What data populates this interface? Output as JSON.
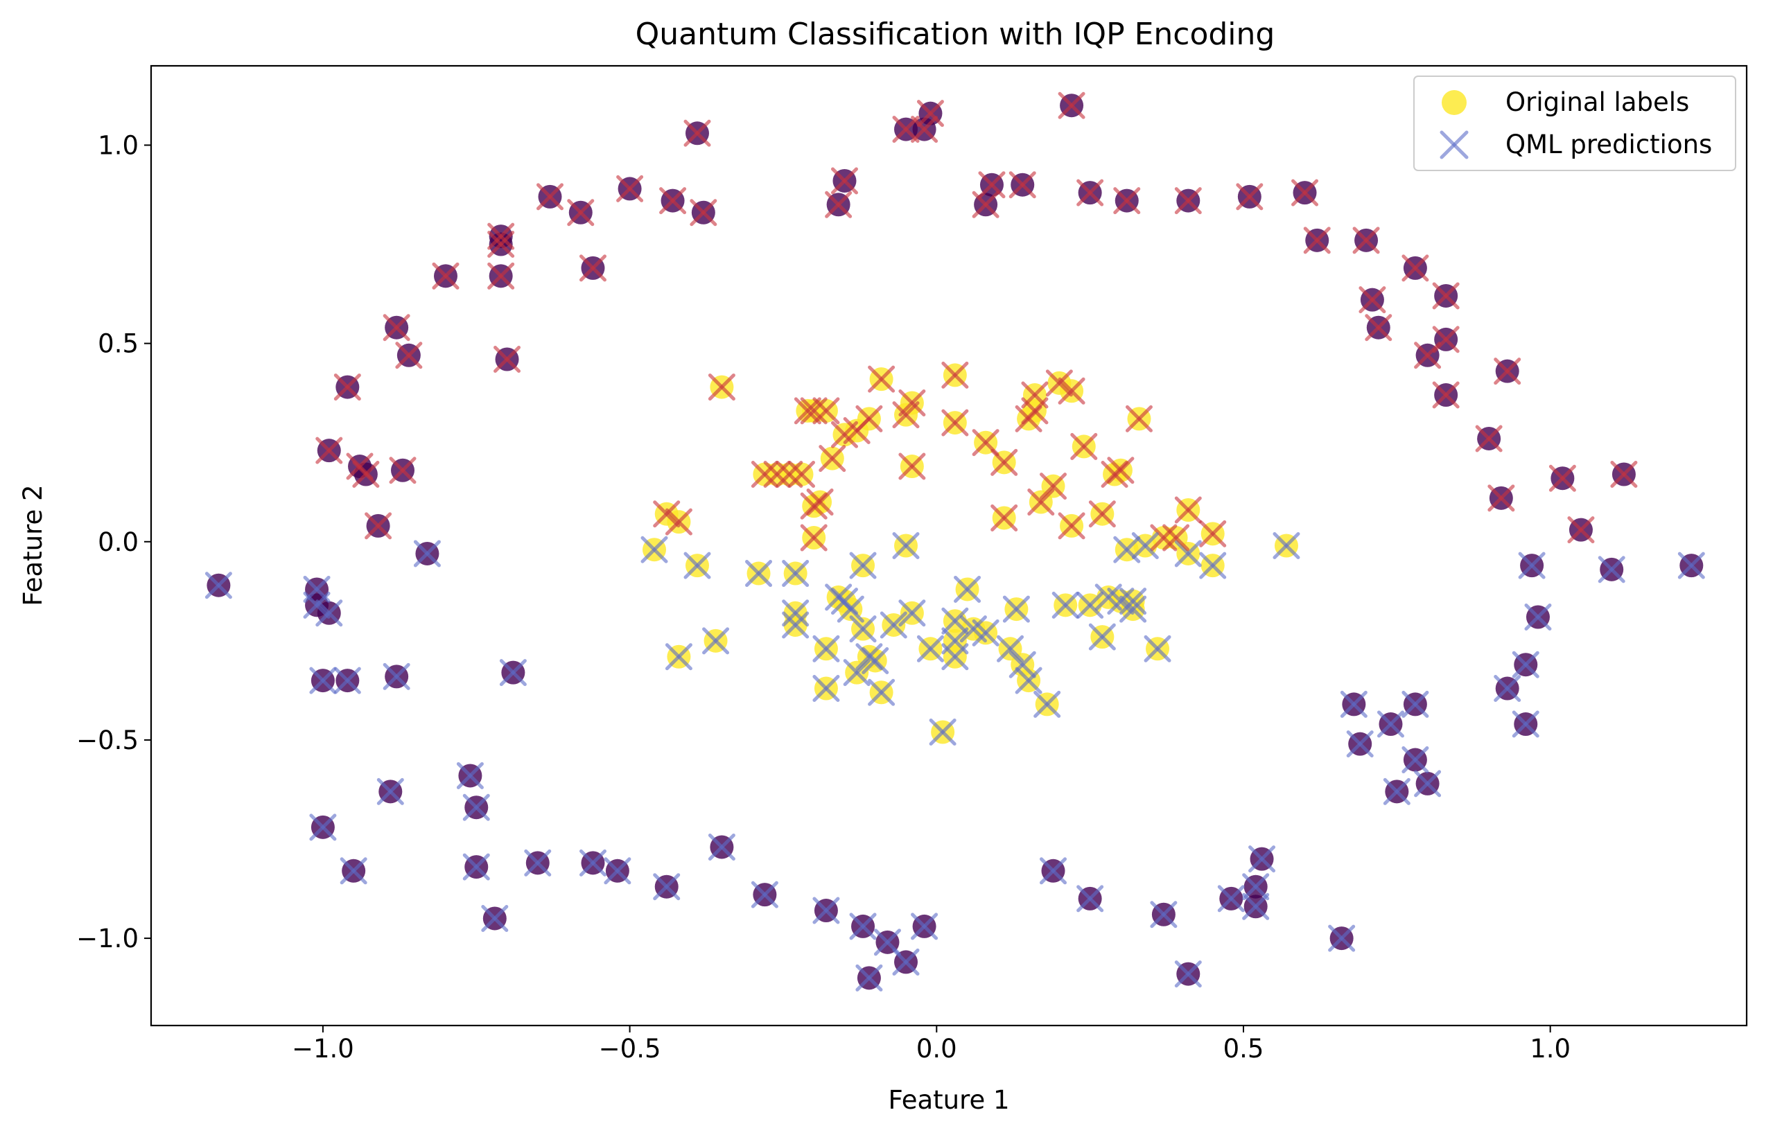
{
  "chart_data": {
    "type": "scatter",
    "title": "Quantum Classification with IQP Encoding",
    "xlabel": "Feature 1",
    "ylabel": "Feature 2",
    "xlim": [
      -1.28,
      1.32
    ],
    "ylim": [
      -1.22,
      1.2
    ],
    "xticks": [
      -1.0,
      -0.5,
      0.0,
      0.5,
      1.0
    ],
    "xtick_labels": [
      "−1.0",
      "−0.5",
      "0.0",
      "0.5",
      "1.0"
    ],
    "yticks": [
      -1.0,
      -0.5,
      0.0,
      0.5,
      1.0
    ],
    "ytick_labels": [
      "−1.0",
      "−0.5",
      "0.0",
      "0.5",
      "1.0"
    ],
    "grid": false,
    "legend_position": "top-right",
    "legend": [
      {
        "label": "Original labels",
        "marker": "circle",
        "color": "#fde725"
      },
      {
        "label": "QML predictions",
        "marker": "x",
        "color": "#8c96d6"
      }
    ],
    "colors": {
      "class0": "#440154",
      "class1": "#fde725",
      "pred0": "#5c6cc8",
      "pred1": "#c8323c",
      "axis": "#000000"
    },
    "series": [
      {
        "name": "Original labels",
        "marker": "circle",
        "points": [
          [
            -0.39,
            1.03,
            0
          ],
          [
            -0.05,
            1.04,
            0
          ],
          [
            -0.02,
            1.04,
            0
          ],
          [
            -0.01,
            1.08,
            0
          ],
          [
            0.22,
            1.1,
            0
          ],
          [
            -0.63,
            0.87,
            0
          ],
          [
            -0.58,
            0.83,
            0
          ],
          [
            -0.5,
            0.89,
            0
          ],
          [
            -0.43,
            0.86,
            0
          ],
          [
            -0.38,
            0.83,
            0
          ],
          [
            -0.15,
            0.91,
            0
          ],
          [
            -0.16,
            0.85,
            0
          ],
          [
            0.08,
            0.85,
            0
          ],
          [
            0.09,
            0.9,
            0
          ],
          [
            0.14,
            0.9,
            0
          ],
          [
            0.25,
            0.88,
            0
          ],
          [
            0.31,
            0.86,
            0
          ],
          [
            0.41,
            0.86,
            0
          ],
          [
            0.51,
            0.87,
            0
          ],
          [
            0.6,
            0.88,
            0
          ],
          [
            -0.71,
            0.77,
            0
          ],
          [
            -0.71,
            0.75,
            0
          ],
          [
            -0.71,
            0.67,
            0
          ],
          [
            -0.8,
            0.67,
            0
          ],
          [
            -0.56,
            0.69,
            0
          ],
          [
            -0.88,
            0.54,
            0
          ],
          [
            -0.86,
            0.47,
            0
          ],
          [
            -0.7,
            0.46,
            0
          ],
          [
            -0.96,
            0.39,
            0
          ],
          [
            -0.99,
            0.23,
            0
          ],
          [
            -0.94,
            0.19,
            0
          ],
          [
            -0.93,
            0.17,
            0
          ],
          [
            -0.87,
            0.18,
            0
          ],
          [
            -0.91,
            0.04,
            0
          ],
          [
            0.62,
            0.76,
            0
          ],
          [
            0.7,
            0.76,
            0
          ],
          [
            0.71,
            0.61,
            0
          ],
          [
            0.72,
            0.54,
            0
          ],
          [
            0.78,
            0.69,
            0
          ],
          [
            0.8,
            0.47,
            0
          ],
          [
            0.83,
            0.62,
            0
          ],
          [
            0.83,
            0.51,
            0
          ],
          [
            0.83,
            0.37,
            0
          ],
          [
            0.9,
            0.26,
            0
          ],
          [
            0.92,
            0.11,
            0
          ],
          [
            0.93,
            0.43,
            0
          ],
          [
            1.02,
            0.16,
            0
          ],
          [
            1.05,
            0.03,
            0
          ],
          [
            1.12,
            0.17,
            0
          ],
          [
            -1.17,
            -0.11,
            0
          ],
          [
            -1.01,
            -0.12,
            0
          ],
          [
            -1.01,
            -0.16,
            0
          ],
          [
            -0.99,
            -0.18,
            0
          ],
          [
            -1.0,
            -0.35,
            0
          ],
          [
            -0.96,
            -0.35,
            0
          ],
          [
            -0.88,
            -0.34,
            0
          ],
          [
            -0.83,
            -0.03,
            0
          ],
          [
            -0.69,
            -0.33,
            0
          ],
          [
            -0.89,
            -0.63,
            0
          ],
          [
            -0.76,
            -0.59,
            0
          ],
          [
            -0.75,
            -0.67,
            0
          ],
          [
            -1.0,
            -0.72,
            0
          ],
          [
            -0.95,
            -0.83,
            0
          ],
          [
            -0.75,
            -0.82,
            0
          ],
          [
            -0.72,
            -0.95,
            0
          ],
          [
            -0.65,
            -0.81,
            0
          ],
          [
            -0.56,
            -0.81,
            0
          ],
          [
            -0.52,
            -0.83,
            0
          ],
          [
            -0.44,
            -0.87,
            0
          ],
          [
            -0.35,
            -0.77,
            0
          ],
          [
            -0.28,
            -0.89,
            0
          ],
          [
            -0.18,
            -0.93,
            0
          ],
          [
            -0.12,
            -0.97,
            0
          ],
          [
            -0.08,
            -1.01,
            0
          ],
          [
            -0.05,
            -1.06,
            0
          ],
          [
            -0.02,
            -0.97,
            0
          ],
          [
            -0.11,
            -1.1,
            0
          ],
          [
            0.19,
            -0.83,
            0
          ],
          [
            0.25,
            -0.9,
            0
          ],
          [
            0.37,
            -0.94,
            0
          ],
          [
            0.41,
            -1.09,
            0
          ],
          [
            0.48,
            -0.9,
            0
          ],
          [
            0.52,
            -0.87,
            0
          ],
          [
            0.52,
            -0.92,
            0
          ],
          [
            0.53,
            -0.8,
            0
          ],
          [
            0.66,
            -1.0,
            0
          ],
          [
            0.68,
            -0.41,
            0
          ],
          [
            0.69,
            -0.51,
            0
          ],
          [
            0.74,
            -0.46,
            0
          ],
          [
            0.75,
            -0.63,
            0
          ],
          [
            0.78,
            -0.41,
            0
          ],
          [
            0.78,
            -0.55,
            0
          ],
          [
            0.8,
            -0.61,
            0
          ],
          [
            0.96,
            -0.31,
            0
          ],
          [
            0.96,
            -0.46,
            0
          ],
          [
            0.97,
            -0.06,
            0
          ],
          [
            0.93,
            -0.37,
            0
          ],
          [
            0.98,
            -0.19,
            0
          ],
          [
            1.1,
            -0.07,
            0
          ],
          [
            1.23,
            -0.06,
            0
          ],
          [
            -0.35,
            0.39,
            1
          ],
          [
            -0.28,
            0.17,
            1
          ],
          [
            -0.26,
            0.17,
            1
          ],
          [
            -0.24,
            0.17,
            1
          ],
          [
            -0.22,
            0.17,
            1
          ],
          [
            -0.21,
            0.33,
            1
          ],
          [
            -0.2,
            0.33,
            1
          ],
          [
            -0.18,
            0.33,
            1
          ],
          [
            -0.17,
            0.21,
            1
          ],
          [
            -0.2,
            0.09,
            1
          ],
          [
            -0.19,
            0.1,
            1
          ],
          [
            -0.2,
            0.01,
            1
          ],
          [
            -0.15,
            0.27,
            1
          ],
          [
            -0.13,
            0.28,
            1
          ],
          [
            -0.11,
            0.31,
            1
          ],
          [
            -0.09,
            0.41,
            1
          ],
          [
            -0.05,
            0.32,
            1
          ],
          [
            -0.04,
            0.35,
            1
          ],
          [
            -0.04,
            0.19,
            1
          ],
          [
            0.03,
            0.42,
            1
          ],
          [
            0.03,
            0.3,
            1
          ],
          [
            0.08,
            0.25,
            1
          ],
          [
            0.11,
            0.2,
            1
          ],
          [
            0.11,
            0.06,
            1
          ],
          [
            0.15,
            0.31,
            1
          ],
          [
            0.16,
            0.33,
            1
          ],
          [
            0.16,
            0.37,
            1
          ],
          [
            0.17,
            0.1,
            1
          ],
          [
            0.19,
            0.14,
            1
          ],
          [
            0.2,
            0.4,
            1
          ],
          [
            0.22,
            0.38,
            1
          ],
          [
            0.22,
            0.04,
            1
          ],
          [
            0.24,
            0.24,
            1
          ],
          [
            0.27,
            0.07,
            1
          ],
          [
            0.29,
            0.17,
            1
          ],
          [
            0.3,
            0.18,
            1
          ],
          [
            0.33,
            0.31,
            1
          ],
          [
            0.37,
            0.01,
            1
          ],
          [
            0.41,
            0.08,
            1
          ],
          [
            0.45,
            0.02,
            1
          ],
          [
            -0.44,
            0.07,
            1
          ],
          [
            -0.42,
            0.05,
            1
          ],
          [
            -0.46,
            -0.02,
            1
          ],
          [
            -0.39,
            -0.06,
            1
          ],
          [
            -0.29,
            -0.08,
            1
          ],
          [
            -0.23,
            -0.08,
            1
          ],
          [
            -0.23,
            -0.18,
            1
          ],
          [
            -0.23,
            -0.21,
            1
          ],
          [
            -0.18,
            -0.27,
            1
          ],
          [
            -0.18,
            -0.37,
            1
          ],
          [
            -0.16,
            -0.14,
            1
          ],
          [
            -0.15,
            -0.15,
            1
          ],
          [
            -0.14,
            -0.17,
            1
          ],
          [
            -0.13,
            -0.33,
            1
          ],
          [
            -0.12,
            -0.22,
            1
          ],
          [
            -0.12,
            -0.06,
            1
          ],
          [
            -0.11,
            -0.29,
            1
          ],
          [
            -0.1,
            -0.3,
            1
          ],
          [
            -0.09,
            -0.38,
            1
          ],
          [
            -0.07,
            -0.21,
            1
          ],
          [
            -0.05,
            -0.01,
            1
          ],
          [
            -0.04,
            -0.18,
            1
          ],
          [
            -0.01,
            -0.27,
            1
          ],
          [
            0.01,
            -0.48,
            1
          ],
          [
            0.03,
            -0.2,
            1
          ],
          [
            0.03,
            -0.25,
            1
          ],
          [
            0.03,
            -0.29,
            1
          ],
          [
            0.05,
            -0.12,
            1
          ],
          [
            0.06,
            -0.22,
            1
          ],
          [
            0.08,
            -0.23,
            1
          ],
          [
            0.12,
            -0.27,
            1
          ],
          [
            0.13,
            -0.17,
            1
          ],
          [
            0.14,
            -0.31,
            1
          ],
          [
            0.15,
            -0.35,
            1
          ],
          [
            0.18,
            -0.41,
            1
          ],
          [
            0.21,
            -0.16,
            1
          ],
          [
            0.25,
            -0.16,
            1
          ],
          [
            0.27,
            -0.24,
            1
          ],
          [
            0.28,
            -0.14,
            1
          ],
          [
            0.3,
            -0.15,
            1
          ],
          [
            0.32,
            -0.15,
            1
          ],
          [
            0.32,
            -0.17,
            1
          ],
          [
            0.31,
            -0.02,
            1
          ],
          [
            0.34,
            -0.01,
            1
          ],
          [
            0.36,
            -0.27,
            1
          ],
          [
            0.41,
            -0.03,
            1
          ],
          [
            0.45,
            -0.06,
            1
          ],
          [
            0.57,
            -0.01,
            1
          ],
          [
            -0.36,
            -0.25,
            1
          ],
          [
            -0.42,
            -0.29,
            1
          ],
          [
            0.39,
            0.01,
            1
          ]
        ]
      },
      {
        "name": "QML predictions",
        "marker": "x",
        "rule": "prediction_class_1_if_y_greater_than_0"
      }
    ]
  }
}
